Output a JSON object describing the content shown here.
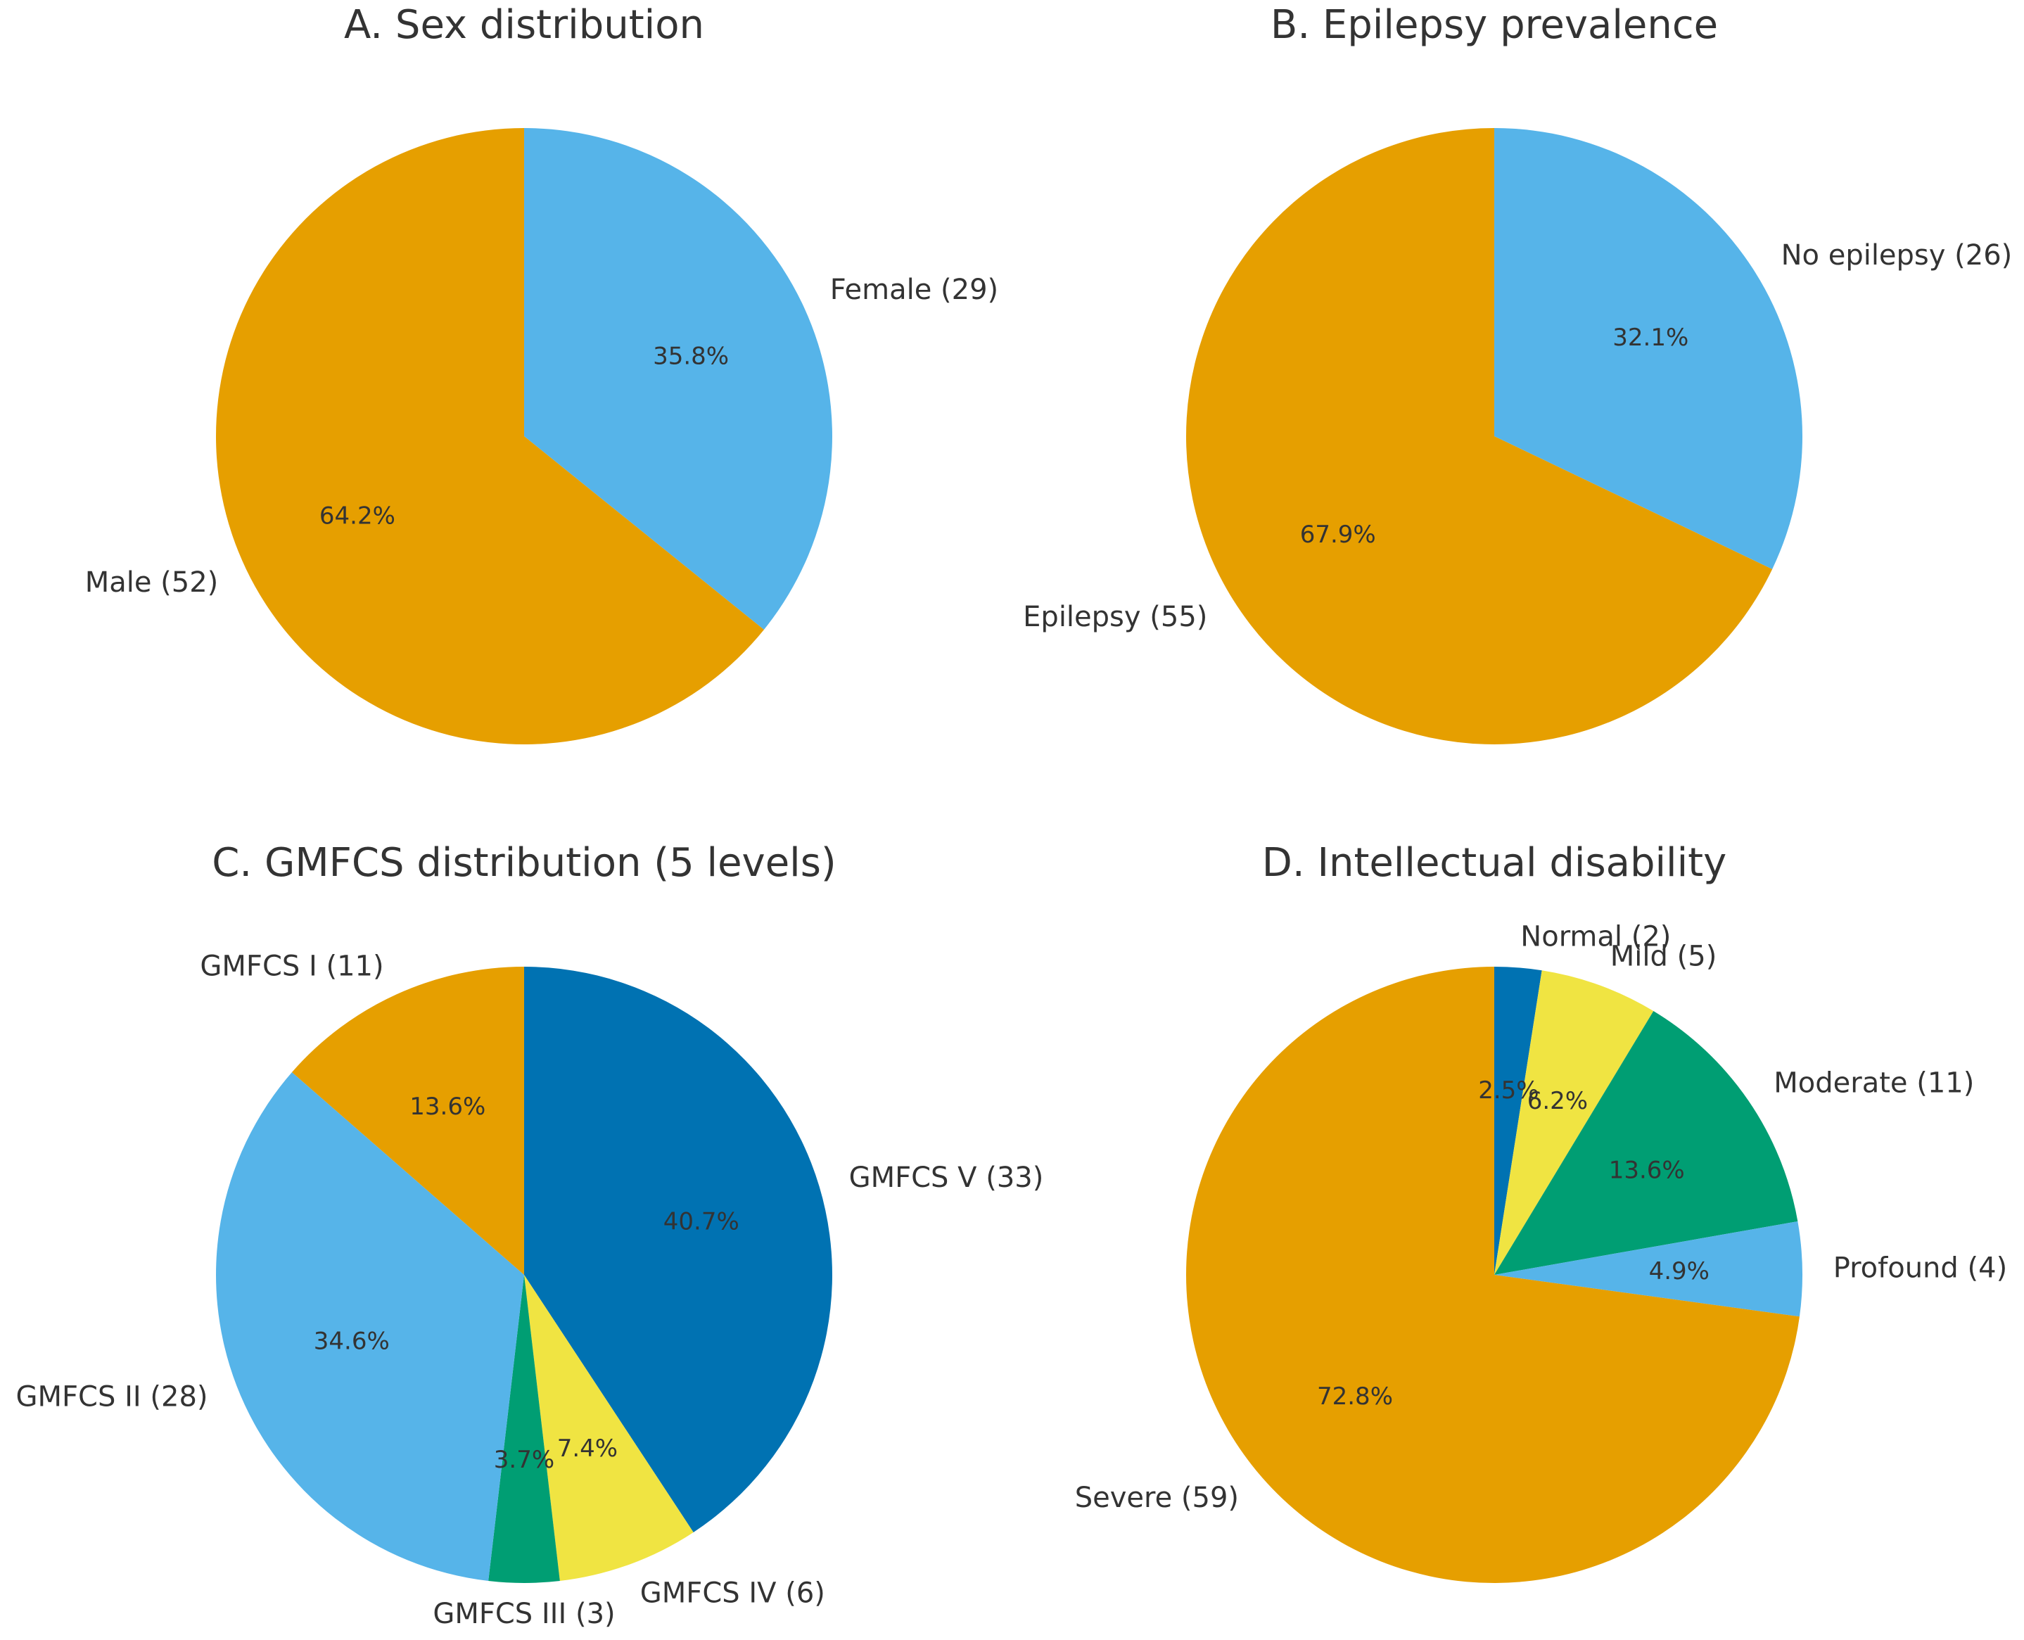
{
  "colors": {
    "orange": "#E69F00",
    "sky": "#56B4E9",
    "blue": "#0072B2",
    "yellow": "#F0E442",
    "green": "#009E73"
  },
  "chart_data": [
    {
      "type": "pie",
      "title": "A. Sex distribution",
      "slices": [
        {
          "label": "Female (29)",
          "value": 29,
          "pct_label": "35.8%",
          "color": "#56B4E9"
        },
        {
          "label": "Male (52)",
          "value": 52,
          "pct_label": "64.2%",
          "color": "#E69F00"
        }
      ],
      "start": "top, clockwise"
    },
    {
      "type": "pie",
      "title": "B. Epilepsy prevalence",
      "slices": [
        {
          "label": "No epilepsy (26)",
          "value": 26,
          "pct_label": "32.1%",
          "color": "#56B4E9"
        },
        {
          "label": "Epilepsy (55)",
          "value": 55,
          "pct_label": "67.9%",
          "color": "#E69F00"
        }
      ],
      "start": "top, clockwise"
    },
    {
      "type": "pie",
      "title": "C. GMFCS distribution (5 levels)",
      "slices": [
        {
          "label": "GMFCS V (33)",
          "value": 33,
          "pct_label": "40.7%",
          "color": "#0072B2"
        },
        {
          "label": "GMFCS IV (6)",
          "value": 6,
          "pct_label": "7.4%",
          "color": "#F0E442"
        },
        {
          "label": "GMFCS III (3)",
          "value": 3,
          "pct_label": "3.7%",
          "color": "#009E73"
        },
        {
          "label": "GMFCS II (28)",
          "value": 28,
          "pct_label": "34.6%",
          "color": "#56B4E9"
        },
        {
          "label": "GMFCS I (11)",
          "value": 11,
          "pct_label": "13.6%",
          "color": "#E69F00"
        }
      ],
      "start": "top, clockwise"
    },
    {
      "type": "pie",
      "title": "D. Intellectual disability",
      "slices": [
        {
          "label": "Normal (2)",
          "value": 2,
          "pct_label": "2.5%",
          "color": "#0072B2"
        },
        {
          "label": "Mild (5)",
          "value": 5,
          "pct_label": "6.2%",
          "color": "#F0E442"
        },
        {
          "label": "Moderate (11)",
          "value": 11,
          "pct_label": "13.6%",
          "color": "#009E73"
        },
        {
          "label": "Profound (4)",
          "value": 4,
          "pct_label": "4.9%",
          "color": "#56B4E9"
        },
        {
          "label": "Severe (59)",
          "value": 59,
          "pct_label": "72.8%",
          "color": "#E69F00"
        }
      ],
      "start": "top, clockwise"
    }
  ]
}
